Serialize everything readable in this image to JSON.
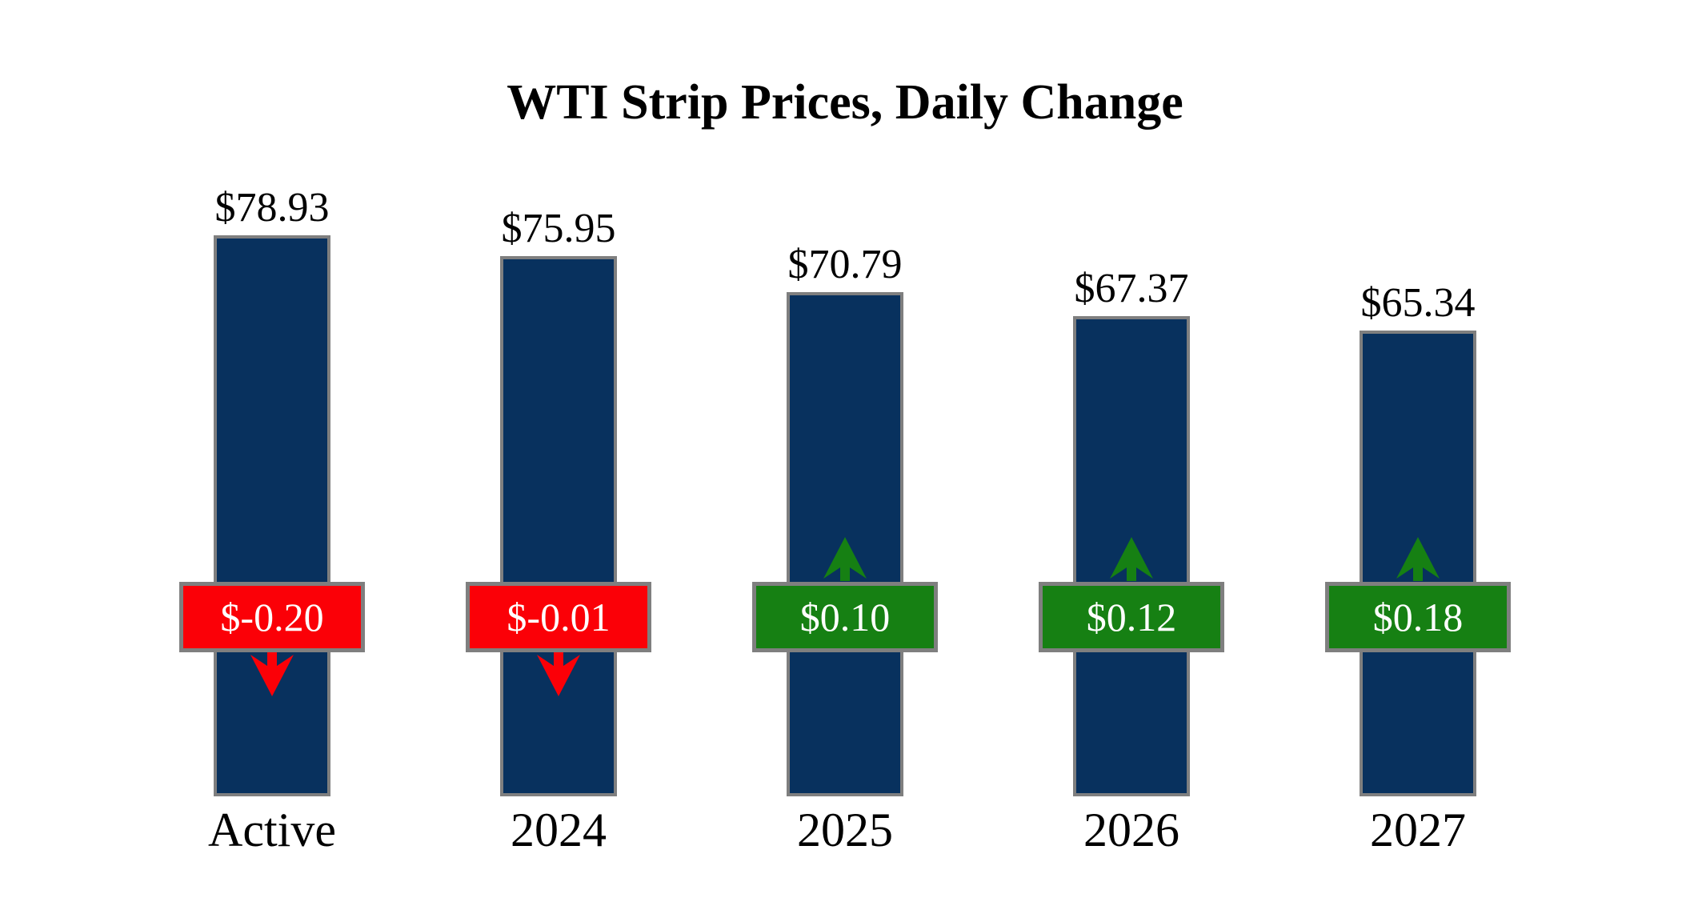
{
  "title": "WTI Strip Prices, Daily Change",
  "chart_data": {
    "type": "bar",
    "title": "WTI Strip Prices, Daily Change",
    "categories": [
      "Active",
      "2024",
      "2025",
      "2026",
      "2027"
    ],
    "series": [
      {
        "name": "Strip Price",
        "values": [
          78.93,
          75.95,
          70.79,
          67.37,
          65.34
        ]
      },
      {
        "name": "Daily Change",
        "values": [
          -0.2,
          -0.01,
          0.1,
          0.12,
          0.18
        ]
      }
    ],
    "price_labels": [
      "$78.93",
      "$75.95",
      "$70.79",
      "$67.37",
      "$65.34"
    ],
    "change_labels": [
      "$-0.20",
      "$-0.01",
      "$0.10",
      "$0.12",
      "$0.18"
    ],
    "xlabel": "",
    "ylabel": "",
    "ylim": [
      0,
      87
    ],
    "grid": false,
    "legend": "none",
    "annotations": "negative changes shown as red badge with down arrow below; positive changes as green badge with up arrow above"
  },
  "colors": {
    "bar": "#08315e",
    "positive": "#168013",
    "negative": "#fb0007",
    "border": "#7f7f7f",
    "badge_text": "#ffffff",
    "label_text": "#000000",
    "background": "#ffffff"
  }
}
